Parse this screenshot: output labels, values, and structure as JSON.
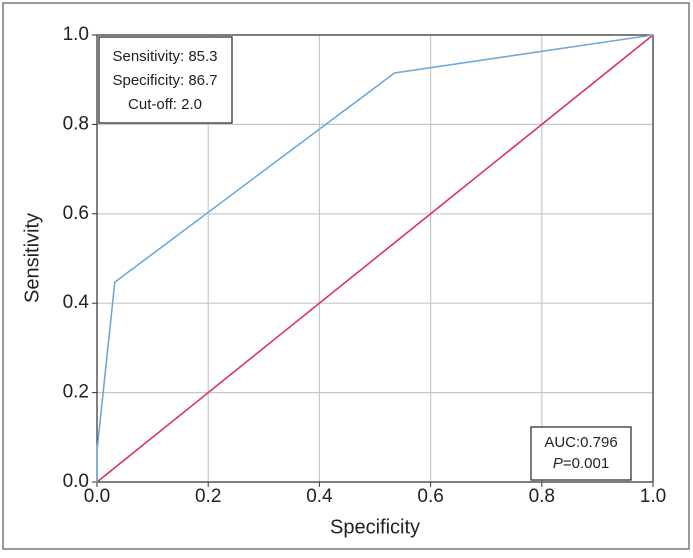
{
  "chart_data": {
    "type": "line",
    "xlabel": "Specificity",
    "ylabel": "Sensitivity",
    "xlim": [
      0,
      1
    ],
    "ylim": [
      0,
      1
    ],
    "xticks": [
      {
        "value": 0,
        "label": "0.0"
      },
      {
        "value": 0.2,
        "label": "0.2"
      },
      {
        "value": 0.4,
        "label": "0.4"
      },
      {
        "value": 0.6,
        "label": "0.6"
      },
      {
        "value": 0.8,
        "label": "0.8"
      },
      {
        "value": 1,
        "label": "1.0"
      }
    ],
    "yticks": [
      {
        "value": 0,
        "label": "0.0"
      },
      {
        "value": 0.2,
        "label": "0.2"
      },
      {
        "value": 0.4,
        "label": "0.4"
      },
      {
        "value": 0.6,
        "label": "0.6"
      },
      {
        "value": 0.8,
        "label": "0.8"
      },
      {
        "value": 1,
        "label": "1.0"
      }
    ],
    "grid": true,
    "series": [
      {
        "color": "#6fa8dc",
        "x": [
          0,
          0,
          0.032,
          0.535,
          1
        ],
        "values": [
          0,
          0.07,
          0.447,
          0.915,
          1
        ]
      },
      {
        "color": "#d6336c",
        "x": [
          0,
          1
        ],
        "values": [
          0,
          1
        ]
      }
    ],
    "annotations": {
      "cutoff_box": [
        "Sensitivity: 85.3",
        "Specificity: 86.7",
        "Cut-off: 2.0"
      ],
      "auc": "AUC:0.796",
      "p_symbol": "P",
      "p_value": "=0.001"
    }
  }
}
